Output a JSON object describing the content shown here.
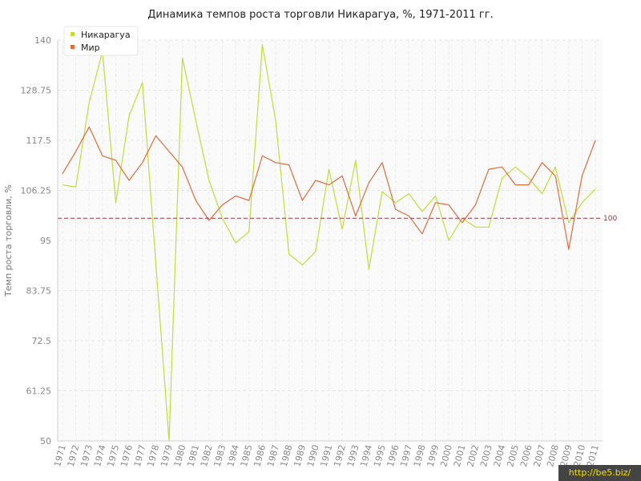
{
  "chart_data": {
    "type": "line",
    "title": "Динамика темпов роста торговли Никарагуа, %, 1971-2011 гг.",
    "ylabel": "Темп роста торговли, %",
    "xlabel": "",
    "ylim": [
      50,
      140
    ],
    "yticks": [
      "50",
      "61.25",
      "72.5",
      "83.75",
      "95",
      "106.25",
      "117.5",
      "128.75",
      "140"
    ],
    "categories": [
      "1971",
      "1972",
      "1973",
      "1974",
      "1975",
      "1976",
      "1977",
      "1978",
      "1979",
      "1980",
      "1981",
      "1982",
      "1983",
      "1984",
      "1985",
      "1986",
      "1987",
      "1988",
      "1989",
      "1990",
      "1991",
      "1992",
      "1993",
      "1994",
      "1995",
      "1996",
      "1997",
      "1998",
      "1999",
      "2000",
      "2001",
      "2002",
      "2003",
      "2004",
      "2005",
      "2006",
      "2007",
      "2008",
      "2009",
      "2010",
      "2011"
    ],
    "series": [
      {
        "name": "Никарагуа",
        "color": "#c2dc3a",
        "values": [
          107.5,
          107,
          126,
          137.5,
          103.5,
          123,
          130.5,
          90,
          50,
          136,
          122,
          108.5,
          100,
          94.5,
          97,
          139,
          122,
          92,
          89.5,
          92.5,
          111,
          97.5,
          113,
          88.5,
          106,
          103.5,
          105.5,
          101.5,
          105,
          95,
          100,
          98,
          98,
          109,
          111.5,
          109,
          105.5,
          111.5,
          99,
          103.5,
          106.5
        ]
      },
      {
        "name": "Мир",
        "color": "#e06c3a",
        "values": [
          110,
          115,
          120.5,
          114,
          113,
          108.5,
          112.5,
          118.5,
          115,
          111.5,
          104,
          99.5,
          103,
          105,
          104,
          114,
          112.5,
          112,
          104,
          108.5,
          107.5,
          109.5,
          100.5,
          108,
          112.5,
          102,
          100.5,
          96.5,
          103.5,
          103,
          99,
          103,
          111,
          111.5,
          107.5,
          107.5,
          112.5,
          109.5,
          93,
          109.5,
          117.5
        ]
      }
    ],
    "reference_line": {
      "value": 100,
      "label": "100",
      "color": "#a03040"
    },
    "grid": true,
    "legend": "top-left"
  },
  "watermark": "http://be5.biz/"
}
